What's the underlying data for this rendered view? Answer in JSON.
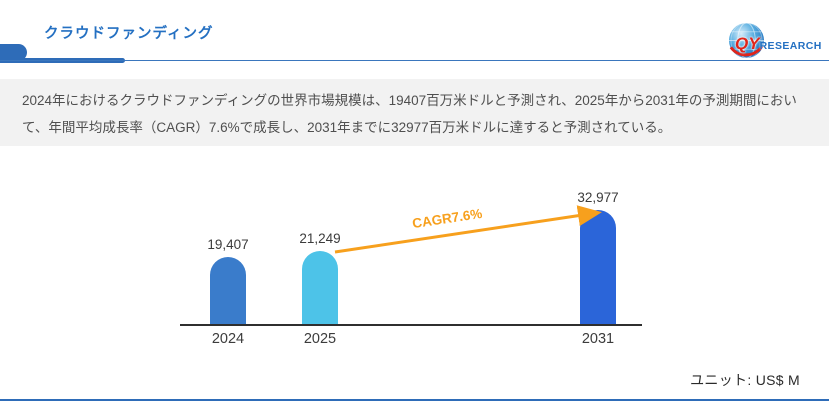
{
  "header": {
    "title": "クラウドファンディング"
  },
  "logo": {
    "qy": "QY",
    "research": "RESEARCH"
  },
  "summary": {
    "text": "2024年におけるクラウドファンディングの世界市場規模は、19407百万米ドルと予測され、2025年から2031年の予測期間において、年間平均成長率（CAGR）7.6%で成長し、2031年までに32977百万米ドルに達すると予測されている。"
  },
  "chart_data": {
    "type": "bar",
    "categories": [
      "2024",
      "2025",
      "2031"
    ],
    "values": [
      19407,
      21249,
      32977
    ],
    "value_labels": [
      "19,407",
      "21,249",
      "32,977"
    ],
    "bar_colors": [
      "#3A7CCB",
      "#4DC3E8",
      "#2B65D9"
    ],
    "annotation": "CAGR7.6%",
    "annotation_color": "#F7A01D",
    "unit_label": "ユニット: US$ M",
    "ylim": [
      0,
      32977
    ],
    "grid": false,
    "legend": false,
    "xlabel": "",
    "ylabel": ""
  }
}
